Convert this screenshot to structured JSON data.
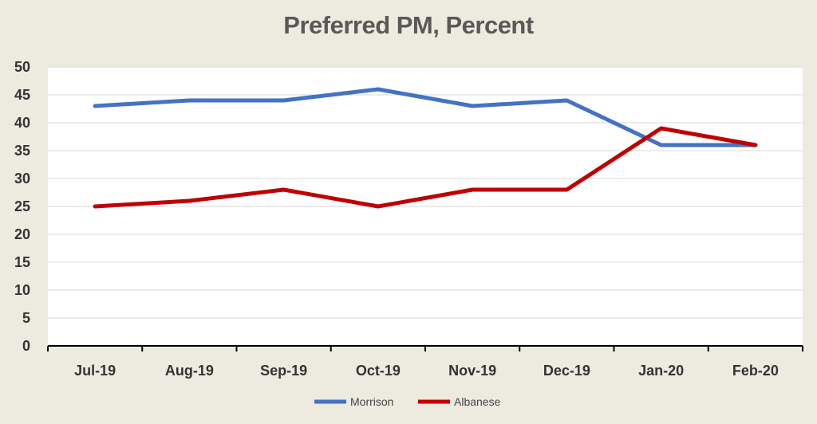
{
  "chart_data": {
    "type": "line",
    "title": "Preferred PM, Percent",
    "categories": [
      "Jul-19",
      "Aug-19",
      "Sep-19",
      "Oct-19",
      "Nov-19",
      "Dec-19",
      "Jan-20",
      "Feb-20"
    ],
    "series": [
      {
        "name": "Morrison",
        "color": "#4472c4",
        "values": [
          43,
          44,
          44,
          46,
          43,
          44,
          36,
          36
        ]
      },
      {
        "name": "Albanese",
        "color": "#c00000",
        "values": [
          25,
          26,
          28,
          25,
          28,
          28,
          39,
          36
        ]
      }
    ],
    "ylim": [
      0,
      50
    ],
    "yticks": [
      0,
      5,
      10,
      15,
      20,
      25,
      30,
      35,
      40,
      45,
      50
    ],
    "grid": true,
    "legend": "bottom",
    "xlabel": "",
    "ylabel": ""
  }
}
